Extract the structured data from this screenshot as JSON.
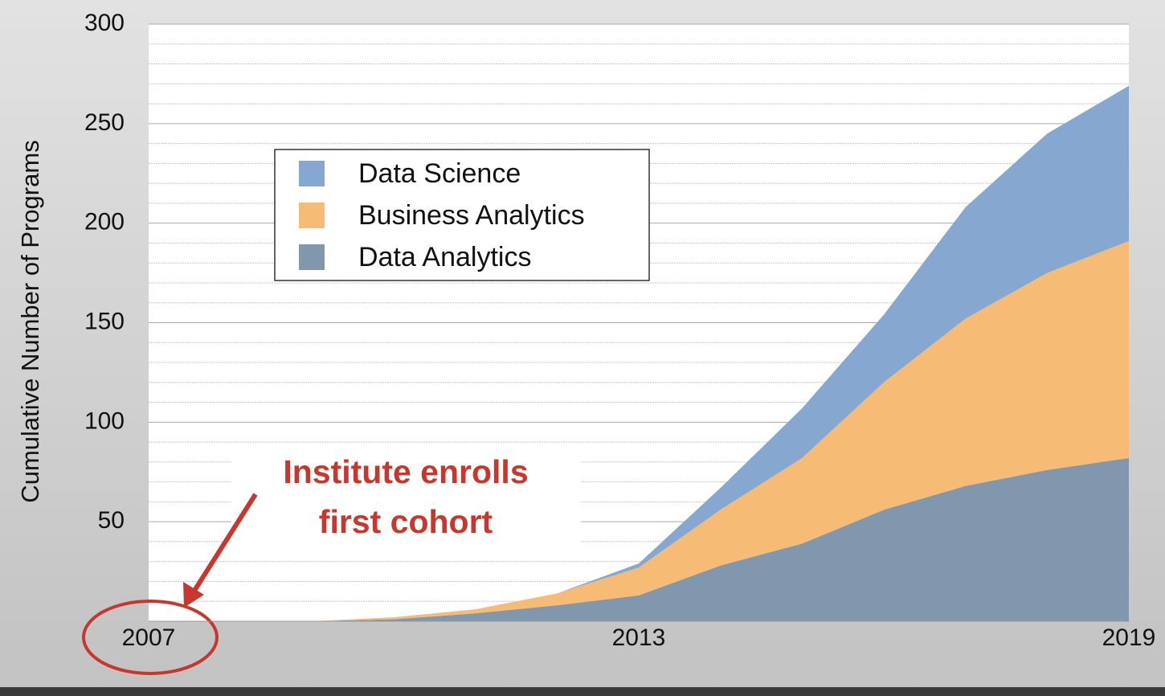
{
  "chart_data": {
    "type": "stacked_area",
    "y_label": "Cumulative Number of Programs",
    "x": [
      2007,
      2008,
      2009,
      2010,
      2011,
      2012,
      2013,
      2014,
      2015,
      2016,
      2017,
      2018,
      2019
    ],
    "series": [
      {
        "name": "Data Science",
        "color": "#86a8d0",
        "values": [
          0,
          0,
          0,
          0,
          0,
          0,
          2,
          11,
          25,
          34,
          56,
          70,
          78
        ]
      },
      {
        "name": "Business Analytics",
        "color": "#f6bb74",
        "values": [
          0,
          0,
          0,
          1,
          2,
          6,
          14,
          28,
          43,
          64,
          84,
          99,
          109
        ]
      },
      {
        "name": "Data Analytics",
        "color": "#8097ad",
        "values": [
          0,
          0,
          0,
          1,
          4,
          8,
          13,
          28,
          39,
          56,
          68,
          76,
          82
        ]
      }
    ],
    "xlim": [
      2007,
      2019
    ],
    "xticks": [
      2007,
      2013,
      2019
    ],
    "ylim": [
      0,
      300
    ],
    "yticks": [
      50,
      100,
      150,
      200,
      250,
      300
    ],
    "minor_yticks": [
      10,
      20,
      30,
      40,
      60,
      70,
      80,
      90,
      110,
      120,
      130,
      140,
      160,
      170,
      180,
      190,
      210,
      220,
      230,
      240,
      260,
      270,
      280,
      290
    ],
    "grid": true,
    "annotation": [
      "Institute enrolls",
      "first cohort"
    ],
    "annotation_color": "#c8372d"
  }
}
